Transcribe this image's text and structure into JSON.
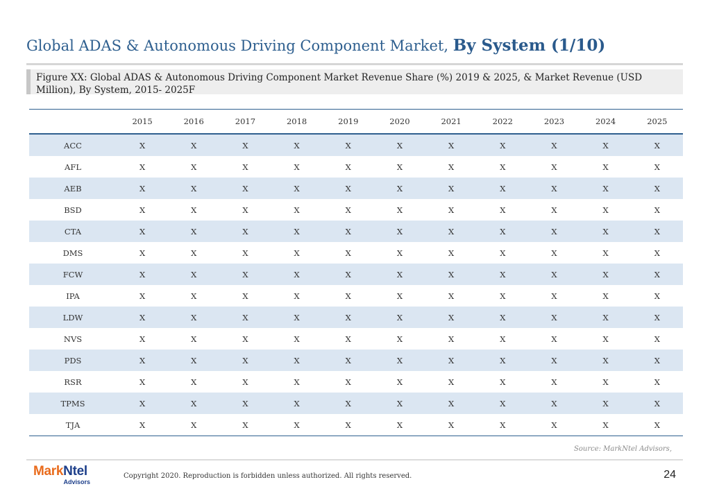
{
  "title": {
    "main": "Global ADAS & Autonomous Driving Component Market,",
    "emphasis": "By System (1/10)"
  },
  "caption": "Figure XX: Global ADAS & Autonomous Driving Component Market Revenue Share (%) 2019 & 2025, & Market Revenue (USD Million), By System, 2015- 2025F",
  "table": {
    "corner": "",
    "years": [
      "2015",
      "2016",
      "2017",
      "2018",
      "2019",
      "2020",
      "2021",
      "2022",
      "2023",
      "2024",
      "2025"
    ],
    "rows": [
      {
        "system": "ACC",
        "values": [
          "X",
          "X",
          "X",
          "X",
          "X",
          "X",
          "X",
          "X",
          "X",
          "X",
          "X"
        ]
      },
      {
        "system": "AFL",
        "values": [
          "X",
          "X",
          "X",
          "X",
          "X",
          "X",
          "X",
          "X",
          "X",
          "X",
          "X"
        ]
      },
      {
        "system": "AEB",
        "values": [
          "X",
          "X",
          "X",
          "X",
          "X",
          "X",
          "X",
          "X",
          "X",
          "X",
          "X"
        ]
      },
      {
        "system": "BSD",
        "values": [
          "X",
          "X",
          "X",
          "X",
          "X",
          "X",
          "X",
          "X",
          "X",
          "X",
          "X"
        ]
      },
      {
        "system": "CTA",
        "values": [
          "X",
          "X",
          "X",
          "X",
          "X",
          "X",
          "X",
          "X",
          "X",
          "X",
          "X"
        ]
      },
      {
        "system": "DMS",
        "values": [
          "X",
          "X",
          "X",
          "X",
          "X",
          "X",
          "X",
          "X",
          "X",
          "X",
          "X"
        ]
      },
      {
        "system": "FCW",
        "values": [
          "X",
          "X",
          "X",
          "X",
          "X",
          "X",
          "X",
          "X",
          "X",
          "X",
          "X"
        ]
      },
      {
        "system": "IPA",
        "values": [
          "X",
          "X",
          "X",
          "X",
          "X",
          "X",
          "X",
          "X",
          "X",
          "X",
          "X"
        ]
      },
      {
        "system": "LDW",
        "values": [
          "X",
          "X",
          "X",
          "X",
          "X",
          "X",
          "X",
          "X",
          "X",
          "X",
          "X"
        ]
      },
      {
        "system": "NVS",
        "values": [
          "X",
          "X",
          "X",
          "X",
          "X",
          "X",
          "X",
          "X",
          "X",
          "X",
          "X"
        ]
      },
      {
        "system": "PDS",
        "values": [
          "X",
          "X",
          "X",
          "X",
          "X",
          "X",
          "X",
          "X",
          "X",
          "X",
          "X"
        ]
      },
      {
        "system": "RSR",
        "values": [
          "X",
          "X",
          "X",
          "X",
          "X",
          "X",
          "X",
          "X",
          "X",
          "X",
          "X"
        ]
      },
      {
        "system": "TPMS",
        "values": [
          "X",
          "X",
          "X",
          "X",
          "X",
          "X",
          "X",
          "X",
          "X",
          "X",
          "X"
        ]
      },
      {
        "system": "TJA",
        "values": [
          "X",
          "X",
          "X",
          "X",
          "X",
          "X",
          "X",
          "X",
          "X",
          "X",
          "X"
        ]
      }
    ]
  },
  "source": "Source: MarkNtel Advisors,",
  "footer": {
    "logo": {
      "mark": "Mark",
      "ntel": "Ntel",
      "sub": "Advisors"
    },
    "copyright": "Copyright 2020. Reproduction is forbidden unless authorized. All rights reserved.",
    "page_number": "24"
  },
  "colors": {
    "title": "#2e5f8f",
    "row_stripe": "#dbe6f2",
    "rule": "#2e5f8f",
    "logo_orange": "#e96b1c",
    "logo_navy": "#1d3f8a"
  }
}
